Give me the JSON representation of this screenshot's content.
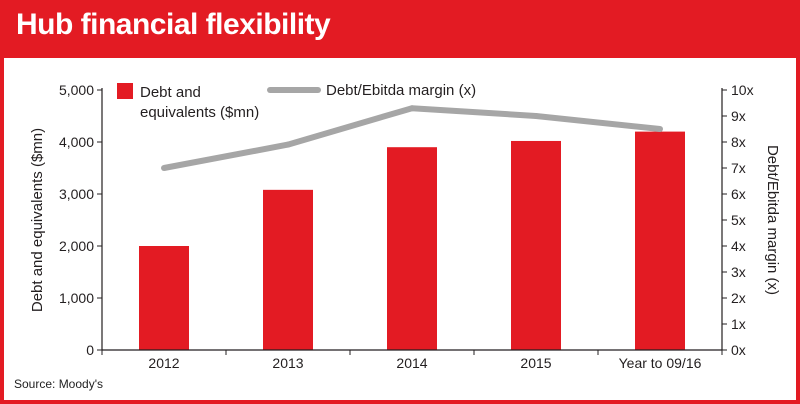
{
  "header": {
    "title": "Hub financial flexibility"
  },
  "footer": {
    "source": "Source: Moody's"
  },
  "colors": {
    "brand_red": "#e31b23",
    "line_gray": "#a6a6a6",
    "axis_black": "#231f20"
  },
  "chart_data": {
    "type": "bar+line",
    "categories": [
      "2012",
      "2013",
      "2014",
      "2015",
      "Year to 09/16"
    ],
    "series": [
      {
        "name": "Debt and equivalents ($mn)",
        "type": "bar",
        "axis": "left",
        "values": [
          2000,
          3080,
          3900,
          4020,
          4200
        ]
      },
      {
        "name": "Debt/Ebitda margin (x)",
        "type": "line",
        "axis": "right",
        "values": [
          7.0,
          7.9,
          9.3,
          9.0,
          8.5
        ]
      }
    ],
    "legend": [
      {
        "label": [
          "Debt and",
          "equivalents ($mn)"
        ],
        "kind": "bar"
      },
      {
        "label": [
          "Debt/Ebitda margin (x)"
        ],
        "kind": "line"
      }
    ],
    "y_left": {
      "label": "Debt and equivalents ($mn)",
      "lim": [
        0,
        5000
      ],
      "ticks": [
        0,
        1000,
        2000,
        3000,
        4000,
        5000
      ],
      "tick_labels": [
        "0",
        "1,000",
        "2,000",
        "3,000",
        "4,000",
        "5,000"
      ]
    },
    "y_right": {
      "label": "Debt/Ebitda margin (x)",
      "lim": [
        0,
        10
      ],
      "ticks": [
        0,
        1,
        2,
        3,
        4,
        5,
        6,
        7,
        8,
        9,
        10
      ],
      "tick_labels": [
        "0x",
        "1x",
        "2x",
        "3x",
        "4x",
        "5x",
        "6x",
        "7x",
        "8x",
        "9x",
        "10x"
      ]
    },
    "grid": false,
    "legend_position": "top"
  }
}
